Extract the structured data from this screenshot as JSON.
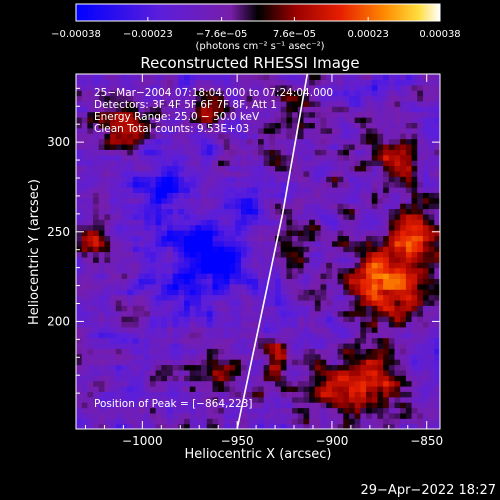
{
  "chart_data": {
    "type": "heatmap",
    "title": "Reconstructed RHESSI Image",
    "xlabel": "Heliocentric X (arcsec)",
    "ylabel": "Heliocentric Y (arcsec)",
    "xlim": [
      -1035,
      -843
    ],
    "ylim": [
      140,
      338
    ],
    "x_ticks": [
      -1000,
      -950,
      -900,
      -850
    ],
    "x_tick_labels": [
      "−1000",
      "−950",
      "−900",
      "−850"
    ],
    "y_ticks": [
      200,
      250,
      300
    ],
    "y_tick_labels": [
      "200",
      "250",
      "300"
    ],
    "colorbar": {
      "min": -0.00038,
      "max": 0.00038,
      "ticks": [
        -0.00038,
        -0.00023,
        -7.6e-05,
        7.6e-05,
        0.00023,
        0.00038
      ],
      "tick_labels": [
        "−0.00038",
        "−0.00023",
        "−7.6e−05",
        "7.6e−05",
        "0.00023",
        "0.00038"
      ],
      "unit_label": "(photons cm⁻² s⁻¹ asec⁻²)"
    },
    "annotations": [
      "25−Mar−2004 07:18:04.000 to 07:24:04.000",
      "Detectors: 3F 4F 5F 6F 7F 8F, Att 1",
      "Energy Range: 25.0 − 50.0 keV",
      "Clean      Total counts: 9.53E+03"
    ],
    "peak_label": "Position of Peak = [−864,223]",
    "peak": [
      -864,
      223
    ],
    "limb_points": [
      [
        -950,
        140
      ],
      [
        -938,
        200
      ],
      [
        -926,
        260
      ],
      [
        -913,
        338
      ]
    ],
    "blobs": [
      [
        -870,
        222,
        14,
        0.95
      ],
      [
        -856,
        250,
        12,
        0.7
      ],
      [
        -880,
        170,
        14,
        0.6
      ],
      [
        -865,
        290,
        9,
        0.5
      ],
      [
        -1010,
        310,
        9,
        0.7
      ],
      [
        -1025,
        245,
        8,
        0.6
      ],
      [
        -918,
        318,
        8,
        0.5
      ],
      [
        -925,
        250,
        8,
        0.4
      ],
      [
        -960,
        170,
        8,
        0.5
      ],
      [
        -985,
        235,
        7,
        0.35
      ],
      [
        -900,
        160,
        10,
        0.5
      ],
      [
        -930,
        180,
        7,
        0.45
      ],
      [
        -965,
        320,
        8,
        0.4
      ]
    ],
    "dark_spots": [
      [
        -972,
        236,
        16,
        -0.85
      ],
      [
        -990,
        275,
        10,
        -0.5
      ],
      [
        -945,
        265,
        9,
        -0.35
      ]
    ],
    "grid_step": 3,
    "seed": 1234
  },
  "footer": {
    "timestamp": "29−Apr−2022 18:27"
  }
}
